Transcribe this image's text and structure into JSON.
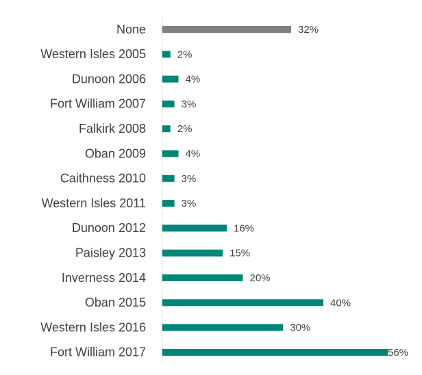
{
  "chart_data": {
    "type": "bar",
    "orientation": "horizontal",
    "categories": [
      "None",
      "Western Isles 2005",
      "Dunoon 2006",
      "Fort William 2007",
      "Falkirk 2008",
      "Oban 2009",
      "Caithness 2010",
      "Western Isles 2011",
      "Dunoon 2012",
      "Paisley 2013",
      "Inverness 2014",
      "Oban 2015",
      "Western Isles 2016",
      "Fort William 2017"
    ],
    "values": [
      32,
      2,
      4,
      3,
      2,
      4,
      3,
      3,
      16,
      15,
      20,
      40,
      30,
      56
    ],
    "value_labels": [
      "32%",
      "2%",
      "4%",
      "3%",
      "2%",
      "4%",
      "3%",
      "3%",
      "16%",
      "15%",
      "20%",
      "40%",
      "30%",
      "56%"
    ],
    "colors": [
      "#7f7f7f",
      "#00877a",
      "#00877a",
      "#00877a",
      "#00877a",
      "#00877a",
      "#00877a",
      "#00877a",
      "#00877a",
      "#00877a",
      "#00877a",
      "#00877a",
      "#00877a",
      "#00877a"
    ]
  }
}
